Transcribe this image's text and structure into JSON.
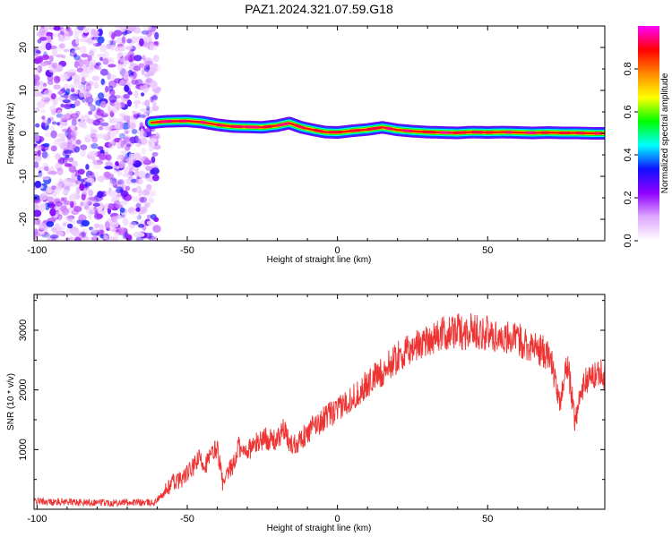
{
  "figure": {
    "title": "PAZ1.2024.321.07.59.G18"
  },
  "chart_data": [
    {
      "type": "heatmap",
      "title": "PAZ1.2024.321.07.59.G18",
      "xlabel": "Height of straight line (km)",
      "ylabel": "Frequency (Hz)",
      "xlim": [
        -101,
        89
      ],
      "ylim": [
        -25,
        25
      ],
      "x_ticks": [
        -100,
        -50,
        0,
        50
      ],
      "y_ticks": [
        -20,
        -10,
        0,
        10,
        20
      ],
      "grid": false,
      "colorbar": {
        "label": "Normalized spectral amplitude",
        "range": [
          0,
          1
        ],
        "ticks": [
          0.0,
          0.2,
          0.4,
          0.6,
          0.8
        ],
        "colors": [
          "#ffffff",
          "#dfa8ff",
          "#9000ff",
          "#1010ff",
          "#00ffff",
          "#00ff00",
          "#ffff00",
          "#ff8800",
          "#ff0000",
          "#ff00ff"
        ]
      },
      "noise_region": {
        "x": [
          -101,
          -60
        ],
        "y": [
          -25,
          25
        ],
        "amplitude": [
          0.05,
          0.35
        ]
      },
      "ridge": {
        "amplitude": 0.95,
        "x": [
          -62,
          -57,
          -50,
          -45,
          -40,
          -35,
          -30,
          -25,
          -20,
          -16,
          -12,
          -8,
          -4,
          0,
          5,
          10,
          15,
          20,
          25,
          30,
          35,
          40,
          45,
          50,
          55,
          60,
          65,
          70,
          75,
          80,
          85,
          89
        ],
        "y": [
          2.5,
          2.8,
          2.9,
          2.6,
          2.0,
          1.6,
          1.5,
          1.4,
          1.8,
          2.4,
          1.4,
          0.8,
          0.3,
          0.2,
          0.6,
          0.9,
          1.4,
          0.8,
          0.5,
          0.3,
          0.2,
          0.1,
          0.3,
          0.2,
          0.3,
          0.2,
          0.1,
          0.2,
          0.1,
          0.1,
          0.0,
          0.0
        ]
      }
    },
    {
      "type": "line",
      "xlabel": "Height of straight line (km)",
      "ylabel": "SNR (10 * v/v)",
      "xlim": [
        -101,
        89
      ],
      "ylim": [
        0,
        3600
      ],
      "x_ticks": [
        -100,
        -50,
        0,
        50
      ],
      "y_ticks": [
        1000,
        2000,
        3000
      ],
      "grid": false,
      "series": [
        {
          "color": "#ee3333",
          "x": [
            -101,
            -95,
            -90,
            -85,
            -80,
            -75,
            -70,
            -65,
            -61,
            -58,
            -55,
            -52,
            -50,
            -48,
            -46,
            -44,
            -42,
            -40,
            -39,
            -38,
            -36,
            -34,
            -33,
            -32,
            -30,
            -28,
            -26,
            -24,
            -22,
            -20,
            -18,
            -16,
            -14,
            -12,
            -10,
            -8,
            -6,
            -4,
            -2,
            0,
            2,
            4,
            6,
            8,
            10,
            12,
            15,
            18,
            20,
            22,
            25,
            28,
            30,
            33,
            36,
            38,
            40,
            42,
            44,
            46,
            48,
            50,
            52,
            55,
            58,
            60,
            62,
            64,
            66,
            68,
            70,
            71,
            72,
            73,
            74,
            75,
            76,
            77,
            78,
            79,
            80,
            81,
            82,
            84,
            86,
            88,
            89
          ],
          "y": [
            140,
            120,
            130,
            110,
            120,
            110,
            120,
            110,
            110,
            250,
            450,
            500,
            600,
            700,
            850,
            750,
            900,
            1050,
            700,
            380,
            650,
            800,
            1100,
            950,
            1000,
            1050,
            1150,
            1200,
            1150,
            1150,
            1350,
            1100,
            1100,
            1200,
            1250,
            1400,
            1450,
            1550,
            1600,
            1650,
            1750,
            1850,
            1900,
            2000,
            2100,
            2200,
            2300,
            2450,
            2550,
            2600,
            2700,
            2800,
            2850,
            2900,
            2950,
            2950,
            3000,
            2950,
            3000,
            3000,
            2950,
            2950,
            2900,
            2900,
            2850,
            2850,
            2800,
            2750,
            2700,
            2650,
            2600,
            2500,
            2300,
            2000,
            1700,
            2100,
            2400,
            2300,
            1900,
            1500,
            1700,
            1900,
            2100,
            2200,
            2250,
            2350,
            2200
          ]
        }
      ]
    }
  ]
}
